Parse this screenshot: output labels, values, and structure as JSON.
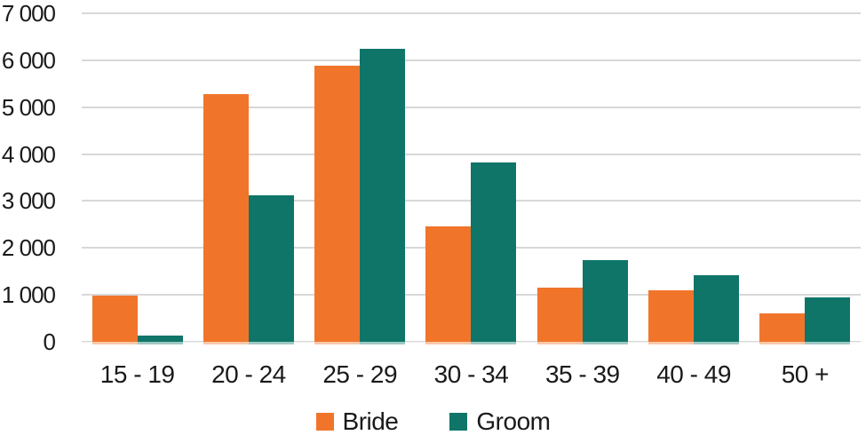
{
  "chart_data": {
    "type": "bar",
    "categories": [
      "15 - 19",
      "20 - 24",
      "25 - 29",
      "30 - 34",
      "35 - 39",
      "40 - 49",
      "50 +"
    ],
    "series": [
      {
        "name": "Bride",
        "color": "#F0752B",
        "values": [
          980,
          5270,
          5880,
          2460,
          1160,
          1090,
          600
        ]
      },
      {
        "name": "Groom",
        "color": "#0F7569",
        "values": [
          140,
          3120,
          6250,
          3820,
          1750,
          1410,
          950
        ]
      }
    ],
    "ylim": [
      0,
      7000
    ],
    "yticks": [
      {
        "value": 7000,
        "label": "7 000"
      },
      {
        "value": 6000,
        "label": "6 000"
      },
      {
        "value": 5000,
        "label": "5 000"
      },
      {
        "value": 4000,
        "label": "4 000"
      },
      {
        "value": 3000,
        "label": "3 000"
      },
      {
        "value": 2000,
        "label": "2 000"
      },
      {
        "value": 1000,
        "label": "1 000"
      },
      {
        "value": 0,
        "label": "0"
      }
    ],
    "xlabel": "",
    "ylabel": "",
    "grid": "horizontal",
    "legend_position": "bottom"
  },
  "colors": {
    "gridline": "#D8D8D8",
    "text": "#1A1A1A",
    "background": "#FFFFFF"
  }
}
